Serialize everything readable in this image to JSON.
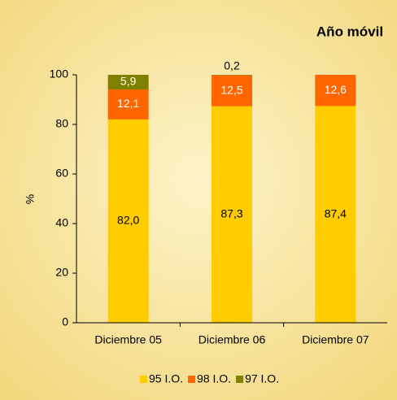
{
  "chart_data": {
    "type": "stacked_bar",
    "title": "Año móvil",
    "y_label": "%",
    "categories": [
      "Diciembre 05",
      "Diciembre 06",
      "Diciembre 07"
    ],
    "series": [
      {
        "name": "95 I.O.",
        "color": "#ffcc00",
        "label_color": "#000000",
        "values": [
          82.0,
          87.3,
          87.4
        ],
        "value_labels": [
          "82,0",
          "87,3",
          "87,4"
        ]
      },
      {
        "name": "98 I.O.",
        "color": "#ff6600",
        "label_color": "#ffffff",
        "values": [
          12.1,
          12.5,
          12.6
        ],
        "value_labels": [
          "12,1",
          "12,5",
          "12,6"
        ]
      },
      {
        "name": "97 I.O.",
        "color": "#808000",
        "label_color": "#ffffff",
        "values": [
          5.9,
          0.2,
          null
        ],
        "value_labels": [
          "5,9",
          "0,2",
          null
        ]
      }
    ],
    "ylim": [
      0,
      100
    ],
    "yticks": [
      0,
      20,
      40,
      60,
      80,
      100
    ],
    "legend": "bottom"
  }
}
